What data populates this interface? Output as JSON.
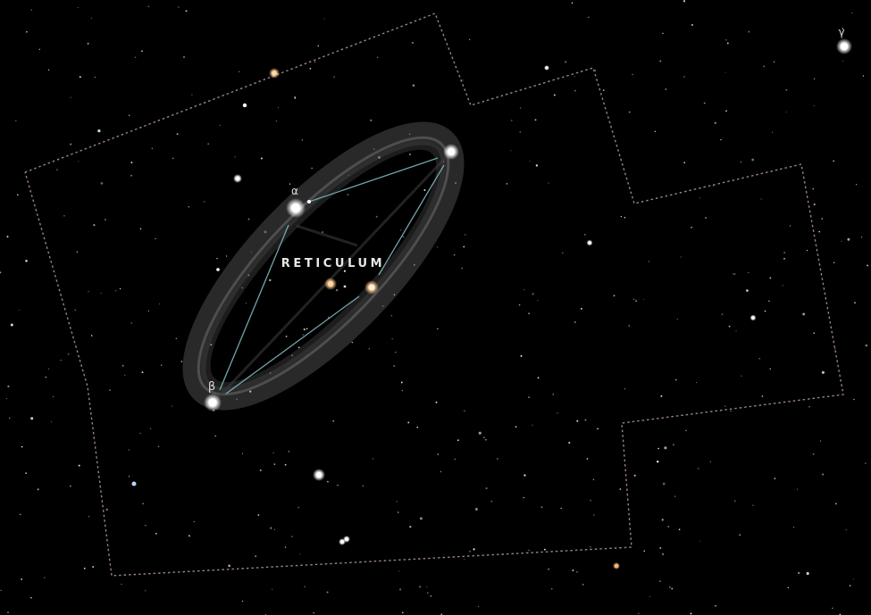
{
  "constellation": {
    "name": "RETICULUM",
    "stars": [
      {
        "id": "alpha",
        "label": "α"
      },
      {
        "id": "beta",
        "label": "β"
      },
      {
        "id": "delta",
        "label": ""
      },
      {
        "id": "epsilon",
        "label": ""
      },
      {
        "id": "iota",
        "label": ""
      }
    ],
    "colors": {
      "lines": "#7fb6bf",
      "label": "#e8e8e8",
      "boundary": "#b89a9a",
      "art": "#cfcfcf"
    }
  },
  "neighbor_star": {
    "label": "γ"
  }
}
